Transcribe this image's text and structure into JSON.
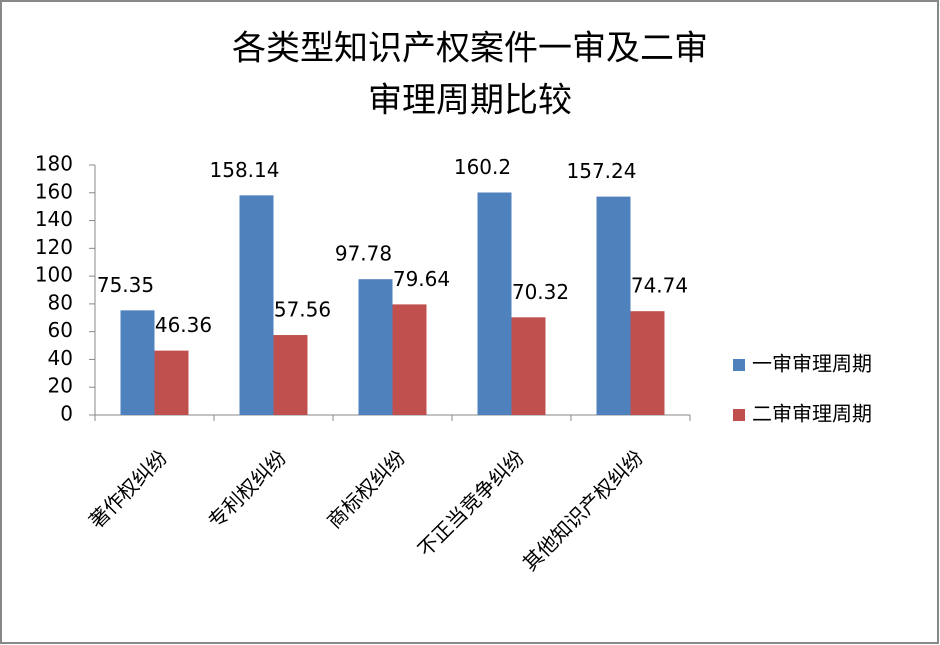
{
  "chart_data": {
    "type": "bar",
    "title": [
      "各类型知识产权案件一审及二审",
      "审理周期比较"
    ],
    "categories": [
      "著作权纠纷",
      "专利权纠纷",
      "商标权纠纷",
      "不正当竞争纠纷",
      "其他知识产权纠纷"
    ],
    "series": [
      {
        "name": "一审审理周期",
        "color": "#4f81bd",
        "values": [
          75.35,
          158.14,
          97.78,
          160.2,
          157.24
        ]
      },
      {
        "name": "二审审理周期",
        "color": "#c0504d",
        "values": [
          46.36,
          57.56,
          79.64,
          70.32,
          74.74
        ]
      }
    ],
    "ylim": [
      0,
      180
    ],
    "yticks": [
      0,
      20,
      40,
      60,
      80,
      100,
      120,
      140,
      160,
      180
    ],
    "grid": false,
    "legend": "right"
  }
}
